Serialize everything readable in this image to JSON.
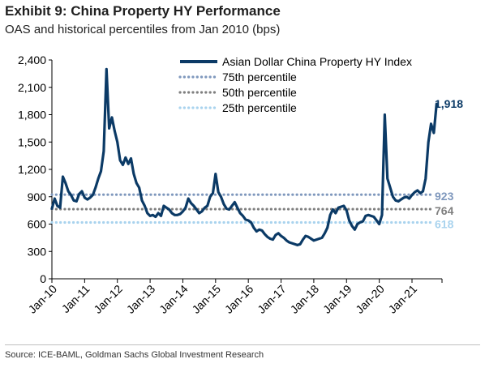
{
  "header": {
    "title": "Exhibit 9: China Property HY Performance",
    "subtitle": "OAS and historical percentiles from Jan 2010 (bps)"
  },
  "footer": {
    "source": "Source: ICE-BAML, Goldman Sachs Global Investment Research"
  },
  "chart_data": {
    "type": "line",
    "title": "Exhibit 9: China Property HY Performance",
    "subtitle": "OAS and historical percentiles from Jan 2010 (bps)",
    "xlabel": "",
    "ylabel": "",
    "ylim": [
      0,
      2400
    ],
    "yticks": [
      0,
      300,
      600,
      900,
      1200,
      1500,
      1800,
      2100,
      2400
    ],
    "ytick_labels": [
      "0",
      "300",
      "600",
      "900",
      "1,200",
      "1,500",
      "1,800",
      "2,100",
      "2,400"
    ],
    "xlim": [
      "2010-01",
      "2021-12"
    ],
    "xtick_labels": [
      "Jan-10",
      "Jan-11",
      "Jan-12",
      "Jan-13",
      "Jan-14",
      "Jan-15",
      "Jan-16",
      "Jan-17",
      "Jan-18",
      "Jan-19",
      "Jan-20",
      "Jan-21"
    ],
    "grid": false,
    "legend_position": "top-right",
    "colors": {
      "index": "#0b3a66",
      "p75": "#7f98bd",
      "p50": "#7f7f7f",
      "p25": "#a9d3ee"
    },
    "series": [
      {
        "name": "Asian Dollar China Property HY Index",
        "style": "solid",
        "points": [
          [
            "2010-01",
            770
          ],
          [
            "2010-02",
            880
          ],
          [
            "2010-03",
            800
          ],
          [
            "2010-04",
            780
          ],
          [
            "2010-05",
            1120
          ],
          [
            "2010-06",
            1050
          ],
          [
            "2010-07",
            960
          ],
          [
            "2010-08",
            920
          ],
          [
            "2010-09",
            860
          ],
          [
            "2010-10",
            850
          ],
          [
            "2010-11",
            930
          ],
          [
            "2010-12",
            960
          ],
          [
            "2011-01",
            890
          ],
          [
            "2011-02",
            870
          ],
          [
            "2011-03",
            890
          ],
          [
            "2011-04",
            920
          ],
          [
            "2011-05",
            1000
          ],
          [
            "2011-06",
            1100
          ],
          [
            "2011-07",
            1180
          ],
          [
            "2011-08",
            1400
          ],
          [
            "2011-09",
            2300
          ],
          [
            "2011-10",
            1650
          ],
          [
            "2011-11",
            1770
          ],
          [
            "2011-12",
            1620
          ],
          [
            "2012-01",
            1500
          ],
          [
            "2012-02",
            1300
          ],
          [
            "2012-03",
            1250
          ],
          [
            "2012-04",
            1330
          ],
          [
            "2012-05",
            1260
          ],
          [
            "2012-06",
            1320
          ],
          [
            "2012-07",
            1150
          ],
          [
            "2012-08",
            1050
          ],
          [
            "2012-09",
            1000
          ],
          [
            "2012-10",
            860
          ],
          [
            "2012-11",
            800
          ],
          [
            "2012-12",
            720
          ],
          [
            "2013-01",
            690
          ],
          [
            "2013-02",
            700
          ],
          [
            "2013-03",
            680
          ],
          [
            "2013-04",
            720
          ],
          [
            "2013-05",
            690
          ],
          [
            "2013-06",
            800
          ],
          [
            "2013-07",
            780
          ],
          [
            "2013-08",
            760
          ],
          [
            "2013-09",
            720
          ],
          [
            "2013-10",
            700
          ],
          [
            "2013-11",
            700
          ],
          [
            "2013-12",
            710
          ],
          [
            "2014-01",
            740
          ],
          [
            "2014-02",
            780
          ],
          [
            "2014-03",
            880
          ],
          [
            "2014-04",
            830
          ],
          [
            "2014-05",
            800
          ],
          [
            "2014-06",
            760
          ],
          [
            "2014-07",
            720
          ],
          [
            "2014-08",
            740
          ],
          [
            "2014-09",
            780
          ],
          [
            "2014-10",
            800
          ],
          [
            "2014-11",
            900
          ],
          [
            "2014-12",
            940
          ],
          [
            "2015-01",
            1150
          ],
          [
            "2015-02",
            950
          ],
          [
            "2015-03",
            900
          ],
          [
            "2015-04",
            820
          ],
          [
            "2015-05",
            770
          ],
          [
            "2015-06",
            760
          ],
          [
            "2015-07",
            800
          ],
          [
            "2015-08",
            840
          ],
          [
            "2015-09",
            780
          ],
          [
            "2015-10",
            720
          ],
          [
            "2015-11",
            690
          ],
          [
            "2015-12",
            650
          ],
          [
            "2016-01",
            640
          ],
          [
            "2016-02",
            620
          ],
          [
            "2016-03",
            560
          ],
          [
            "2016-04",
            520
          ],
          [
            "2016-05",
            540
          ],
          [
            "2016-06",
            530
          ],
          [
            "2016-07",
            490
          ],
          [
            "2016-08",
            460
          ],
          [
            "2016-09",
            440
          ],
          [
            "2016-10",
            430
          ],
          [
            "2016-11",
            480
          ],
          [
            "2016-12",
            500
          ],
          [
            "2017-01",
            470
          ],
          [
            "2017-02",
            450
          ],
          [
            "2017-03",
            420
          ],
          [
            "2017-04",
            400
          ],
          [
            "2017-05",
            390
          ],
          [
            "2017-06",
            380
          ],
          [
            "2017-07",
            370
          ],
          [
            "2017-08",
            380
          ],
          [
            "2017-09",
            430
          ],
          [
            "2017-10",
            470
          ],
          [
            "2017-11",
            460
          ],
          [
            "2017-12",
            440
          ],
          [
            "2018-01",
            420
          ],
          [
            "2018-02",
            430
          ],
          [
            "2018-03",
            440
          ],
          [
            "2018-04",
            450
          ],
          [
            "2018-05",
            500
          ],
          [
            "2018-06",
            560
          ],
          [
            "2018-07",
            700
          ],
          [
            "2018-08",
            760
          ],
          [
            "2018-09",
            720
          ],
          [
            "2018-10",
            780
          ],
          [
            "2018-11",
            790
          ],
          [
            "2018-12",
            800
          ],
          [
            "2019-01",
            750
          ],
          [
            "2019-02",
            640
          ],
          [
            "2019-03",
            580
          ],
          [
            "2019-04",
            540
          ],
          [
            "2019-05",
            600
          ],
          [
            "2019-06",
            620
          ],
          [
            "2019-07",
            630
          ],
          [
            "2019-08",
            690
          ],
          [
            "2019-09",
            700
          ],
          [
            "2019-10",
            690
          ],
          [
            "2019-11",
            680
          ],
          [
            "2019-12",
            640
          ],
          [
            "2020-01",
            600
          ],
          [
            "2020-02",
            700
          ],
          [
            "2020-03",
            1800
          ],
          [
            "2020-04",
            1100
          ],
          [
            "2020-05",
            1000
          ],
          [
            "2020-06",
            900
          ],
          [
            "2020-07",
            860
          ],
          [
            "2020-08",
            850
          ],
          [
            "2020-09",
            870
          ],
          [
            "2020-10",
            890
          ],
          [
            "2020-11",
            900
          ],
          [
            "2020-12",
            880
          ],
          [
            "2021-01",
            920
          ],
          [
            "2021-02",
            950
          ],
          [
            "2021-03",
            970
          ],
          [
            "2021-04",
            940
          ],
          [
            "2021-05",
            960
          ],
          [
            "2021-06",
            1100
          ],
          [
            "2021-07",
            1500
          ],
          [
            "2021-08",
            1700
          ],
          [
            "2021-09",
            1600
          ],
          [
            "2021-10",
            1918
          ]
        ]
      },
      {
        "name": "75th percentile",
        "style": "dotted",
        "value": 923
      },
      {
        "name": "50th percentile",
        "style": "dotted",
        "value": 764
      },
      {
        "name": "25th percentile",
        "style": "dotted",
        "value": 618
      }
    ],
    "end_labels": [
      {
        "series": "Asian Dollar China Property HY Index",
        "text": "1,918"
      },
      {
        "series": "75th percentile",
        "text": "923"
      },
      {
        "series": "50th percentile",
        "text": "764"
      },
      {
        "series": "25th percentile",
        "text": "618"
      }
    ]
  }
}
